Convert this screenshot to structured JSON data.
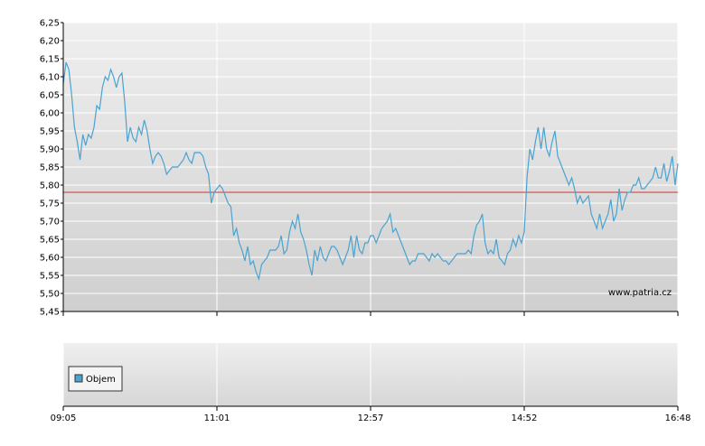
{
  "watermark": "www.patria.cz",
  "legend": {
    "label": "Objem"
  },
  "colors": {
    "line": "#4aa3d0",
    "reference": "#cc3333",
    "grid": "#ffffff",
    "plot_top": "#efefef",
    "plot_bottom": "#cfcfcf",
    "legend_swatch": "#4aa3d0"
  },
  "chart_data": [
    {
      "type": "line",
      "title": "",
      "xlabel": "",
      "ylabel": "",
      "ylim": [
        5.45,
        6.25
      ],
      "y_ticks": [
        "6,25",
        "6,20",
        "6,15",
        "6,10",
        "6,05",
        "6,00",
        "5,95",
        "5,90",
        "5,85",
        "5,80",
        "5,75",
        "5,70",
        "5,65",
        "5,60",
        "5,55",
        "5,50",
        "5,45"
      ],
      "x_ticks": [
        "09:05",
        "11:01",
        "12:57",
        "14:52",
        "16:48"
      ],
      "reference_line": 5.78,
      "grid": true,
      "series": [
        {
          "name": "",
          "values": [
            6.08,
            6.14,
            6.12,
            6.05,
            5.96,
            5.92,
            5.87,
            5.94,
            5.91,
            5.94,
            5.93,
            5.96,
            6.02,
            6.01,
            6.07,
            6.1,
            6.09,
            6.12,
            6.1,
            6.07,
            6.1,
            6.11,
            6.03,
            5.92,
            5.96,
            5.93,
            5.92,
            5.96,
            5.94,
            5.98,
            5.95,
            5.9,
            5.86,
            5.88,
            5.89,
            5.88,
            5.86,
            5.83,
            5.84,
            5.85,
            5.85,
            5.85,
            5.86,
            5.87,
            5.89,
            5.87,
            5.86,
            5.89,
            5.89,
            5.89,
            5.88,
            5.85,
            5.83,
            5.75,
            5.78,
            5.79,
            5.8,
            5.79,
            5.77,
            5.75,
            5.74,
            5.66,
            5.68,
            5.64,
            5.62,
            5.59,
            5.63,
            5.58,
            5.59,
            5.56,
            5.54,
            5.58,
            5.59,
            5.6,
            5.62,
            5.62,
            5.62,
            5.63,
            5.66,
            5.61,
            5.62,
            5.67,
            5.7,
            5.68,
            5.72,
            5.67,
            5.65,
            5.62,
            5.58,
            5.55,
            5.62,
            5.59,
            5.63,
            5.6,
            5.59,
            5.61,
            5.63,
            5.63,
            5.62,
            5.6,
            5.58,
            5.6,
            5.62,
            5.66,
            5.6,
            5.66,
            5.62,
            5.61,
            5.64,
            5.64,
            5.66,
            5.66,
            5.64,
            5.66,
            5.68,
            5.69,
            5.7,
            5.72,
            5.67,
            5.68,
            5.66,
            5.64,
            5.62,
            5.6,
            5.58,
            5.59,
            5.59,
            5.61,
            5.61,
            5.61,
            5.6,
            5.59,
            5.61,
            5.6,
            5.61,
            5.6,
            5.59,
            5.59,
            5.58,
            5.59,
            5.6,
            5.61,
            5.61,
            5.61,
            5.61,
            5.62,
            5.61,
            5.66,
            5.69,
            5.7,
            5.72,
            5.64,
            5.61,
            5.62,
            5.61,
            5.65,
            5.6,
            5.59,
            5.58,
            5.61,
            5.62,
            5.65,
            5.63,
            5.66,
            5.64,
            5.67,
            5.82,
            5.9,
            5.87,
            5.92,
            5.96,
            5.9,
            5.96,
            5.9,
            5.88,
            5.92,
            5.95,
            5.88,
            5.86,
            5.84,
            5.82,
            5.8,
            5.82,
            5.79,
            5.75,
            5.77,
            5.75,
            5.76,
            5.77,
            5.72,
            5.7,
            5.68,
            5.72,
            5.68,
            5.7,
            5.72,
            5.76,
            5.7,
            5.72,
            5.79,
            5.73,
            5.76,
            5.78,
            5.78,
            5.8,
            5.8,
            5.82,
            5.79,
            5.79,
            5.8,
            5.81,
            5.82,
            5.85,
            5.82,
            5.82,
            5.86,
            5.81,
            5.84,
            5.88,
            5.8,
            5.86
          ]
        }
      ]
    },
    {
      "type": "bar",
      "title": "",
      "legend": [
        "Objem"
      ],
      "x_ticks": [
        "09:05",
        "11:01",
        "12:57",
        "14:52",
        "16:48"
      ],
      "series": [
        {
          "name": "Objem",
          "values": []
        }
      ]
    }
  ]
}
